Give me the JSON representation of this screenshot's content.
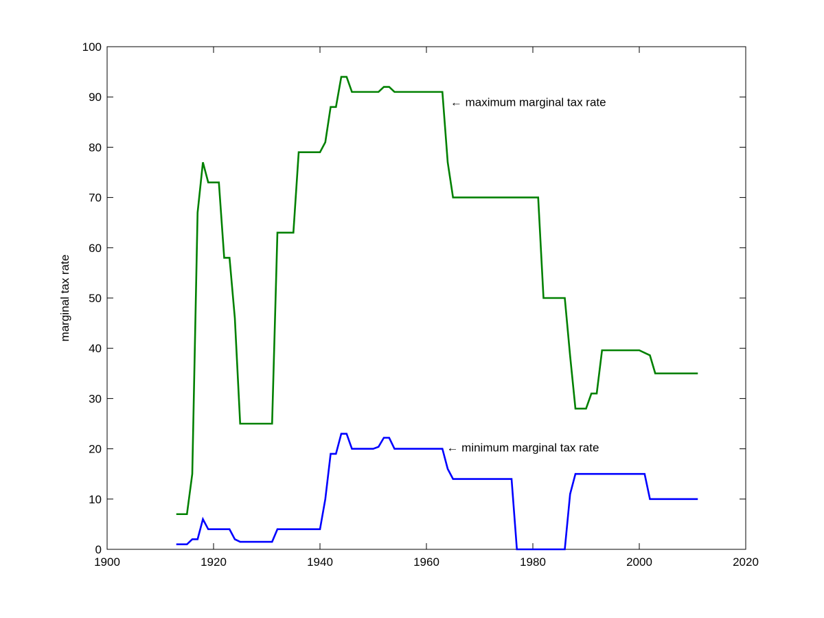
{
  "chart_data": {
    "type": "line",
    "title": "",
    "xlabel": "",
    "ylabel": "marginal tax rate",
    "xlim": [
      1900,
      2020
    ],
    "ylim": [
      0,
      100
    ],
    "xticks": [
      1900,
      1920,
      1940,
      1960,
      1980,
      2000,
      2020
    ],
    "yticks": [
      0,
      10,
      20,
      30,
      40,
      50,
      60,
      70,
      80,
      90,
      100
    ],
    "grid": false,
    "series": [
      {
        "color": "#008000",
        "x": [
          1913,
          1915,
          1916,
          1917,
          1918,
          1919,
          1921,
          1922,
          1923,
          1924,
          1925,
          1931,
          1932,
          1935,
          1936,
          1940,
          1941,
          1942,
          1943,
          1944,
          1945,
          1946,
          1950,
          1951,
          1952,
          1953,
          1954,
          1963,
          1964,
          1965,
          1981,
          1982,
          1986,
          1987,
          1988,
          1990,
          1991,
          1992,
          1993,
          2000,
          2001,
          2002,
          2003,
          2011
        ],
        "y": [
          7,
          7,
          15,
          67,
          77,
          73,
          73,
          58,
          58,
          46,
          25,
          25,
          63,
          63,
          79,
          79,
          81,
          88,
          88,
          94,
          94,
          91,
          91,
          91,
          92,
          92,
          91,
          91,
          77,
          70,
          70,
          50,
          50,
          38.5,
          28,
          28,
          31,
          31,
          39.6,
          39.6,
          39.1,
          38.6,
          35,
          35
        ]
      },
      {
        "color": "#0000ff",
        "x": [
          1913,
          1915,
          1916,
          1917,
          1918,
          1919,
          1923,
          1924,
          1925,
          1929,
          1930,
          1931,
          1932,
          1940,
          1941,
          1942,
          1943,
          1944,
          1945,
          1946,
          1950,
          1951,
          1952,
          1953,
          1954,
          1963,
          1964,
          1965,
          1976,
          1977,
          1986,
          1987,
          1988,
          2001,
          2002,
          2011
        ],
        "y": [
          1,
          1,
          2,
          2,
          6,
          4,
          4,
          2,
          1.5,
          1.5,
          1.5,
          1.5,
          4,
          4,
          10,
          19,
          19,
          23,
          23,
          20,
          20,
          20.4,
          22.2,
          22.2,
          20,
          20,
          16,
          14,
          14,
          0,
          0,
          11,
          15,
          15,
          10,
          10
        ]
      }
    ],
    "annotations": [
      {
        "text": "← maximum marginal tax rate",
        "x": 1964.5,
        "y": 88.2
      },
      {
        "text": "← minimum marginal tax rate",
        "x": 1963.8,
        "y": 19.5
      }
    ]
  }
}
